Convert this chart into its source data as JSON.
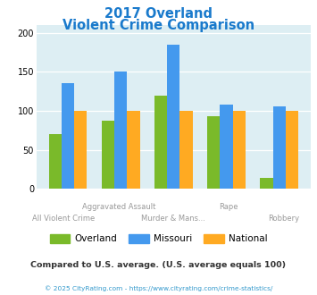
{
  "title_line1": "2017 Overland",
  "title_line2": "Violent Crime Comparison",
  "overland": [
    70,
    87,
    120,
    93,
    14
  ],
  "missouri": [
    135,
    150,
    185,
    108,
    106
  ],
  "national": [
    100,
    100,
    100,
    100,
    100
  ],
  "overland_color": "#7aba2a",
  "missouri_color": "#4499ee",
  "national_color": "#ffaa22",
  "bg_color": "#ddeef3",
  "title_color": "#1a7acc",
  "ylim": [
    0,
    210
  ],
  "yticks": [
    0,
    50,
    100,
    150,
    200
  ],
  "subtitle_text": "Compared to U.S. average. (U.S. average equals 100)",
  "footer_text": "© 2025 CityRating.com - https://www.cityrating.com/crime-statistics/",
  "subtitle_color": "#333333",
  "footer_color": "#3399cc",
  "label_color": "#999999",
  "legend_labels": [
    "Overland",
    "Missouri",
    "National"
  ]
}
